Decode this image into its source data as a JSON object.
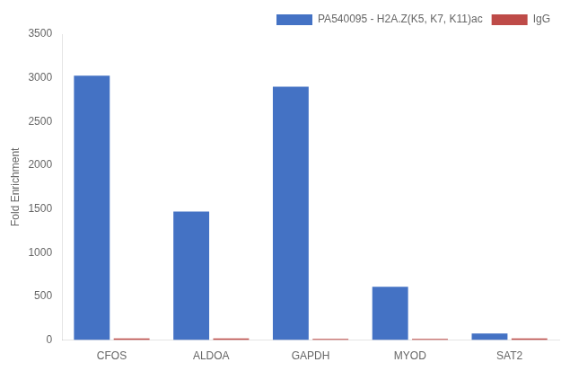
{
  "chart_data": {
    "type": "bar",
    "categories": [
      "CFOS",
      "ALDOA",
      "GAPDH",
      "MYOD",
      "SAT2"
    ],
    "series": [
      {
        "name": "PA540095 - H2A.Z(K5, K7, K11)ac",
        "color": "#4472C4",
        "values": [
          3025,
          1470,
          2900,
          610,
          75
        ]
      },
      {
        "name": "IgG",
        "color": "#BE4B48",
        "values": [
          18,
          18,
          14,
          14,
          18
        ]
      }
    ],
    "ylabel": "Fold Enrichment",
    "ylim": [
      0,
      3500
    ],
    "yticks": [
      0,
      500,
      1000,
      1500,
      2000,
      2500,
      3000,
      3500
    ],
    "grid": false,
    "legend": "upper right"
  }
}
